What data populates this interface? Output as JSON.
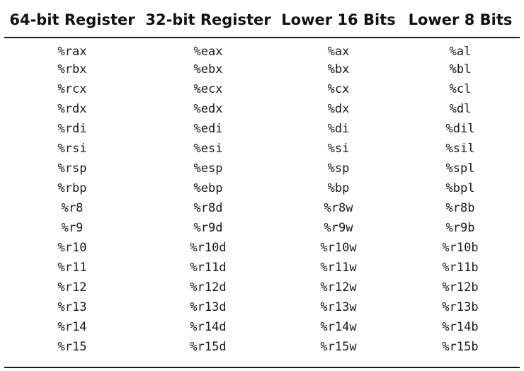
{
  "table": {
    "headers": [
      "64-bit Register",
      "32-bit Register",
      "Lower 16 Bits",
      "Lower 8 Bits"
    ],
    "rows": [
      [
        "%rax",
        "%eax",
        "%ax",
        "%al"
      ],
      [
        "%rbx",
        "%ebx",
        "%bx",
        "%bl"
      ],
      [
        "%rcx",
        "%ecx",
        "%cx",
        "%cl"
      ],
      [
        "%rdx",
        "%edx",
        "%dx",
        "%dl"
      ],
      [
        "%rdi",
        "%edi",
        "%di",
        "%dil"
      ],
      [
        "%rsi",
        "%esi",
        "%si",
        "%sil"
      ],
      [
        "%rsp",
        "%esp",
        "%sp",
        "%spl"
      ],
      [
        "%rbp",
        "%ebp",
        "%bp",
        "%bpl"
      ],
      [
        "%r8",
        "%r8d",
        "%r8w",
        "%r8b"
      ],
      [
        "%r9",
        "%r9d",
        "%r9w",
        "%r9b"
      ],
      [
        "%r10",
        "%r10d",
        "%r10w",
        "%r10b"
      ],
      [
        "%r11",
        "%r11d",
        "%r11w",
        "%r11b"
      ],
      [
        "%r12",
        "%r12d",
        "%r12w",
        "%r12b"
      ],
      [
        "%r13",
        "%r13d",
        "%r13w",
        "%r13b"
      ],
      [
        "%r14",
        "%r14d",
        "%r14w",
        "%r14b"
      ],
      [
        "%r15",
        "%r15d",
        "%r15w",
        "%r15b"
      ]
    ]
  }
}
